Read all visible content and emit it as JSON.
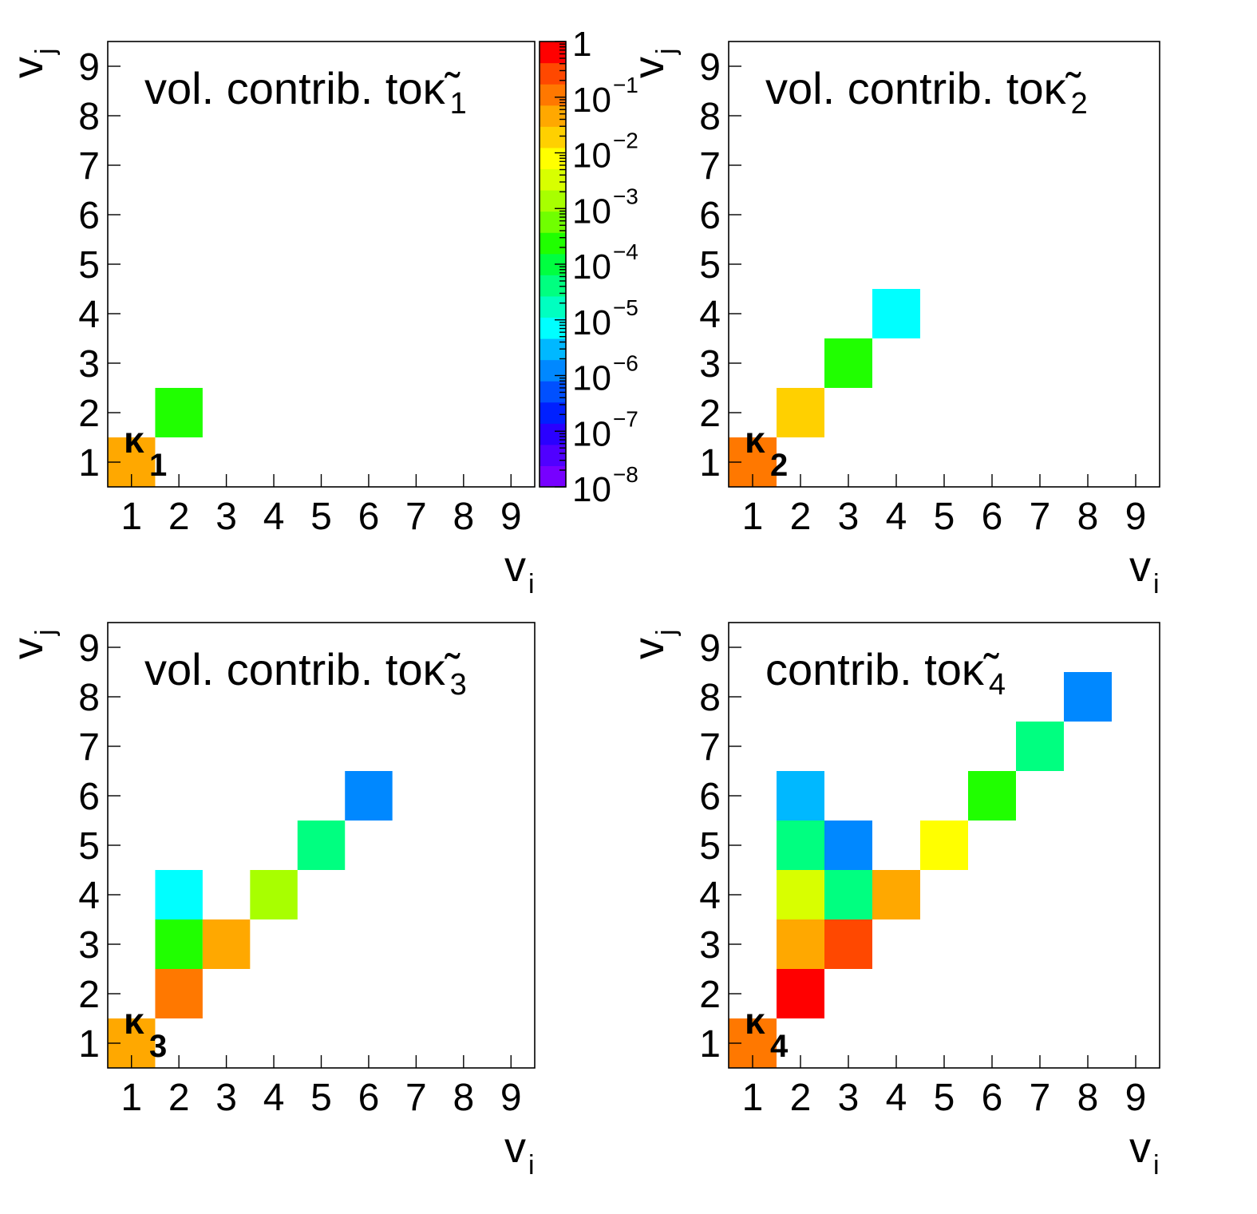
{
  "chart_data": [
    {
      "type": "heatmap",
      "title_main": "vol. contrib. to ",
      "title_symbol": "κ̃",
      "title_sub": "1",
      "label_symbol": "κ",
      "label_sub": "1",
      "xlabel": "v",
      "xlabel_sub": "i",
      "ylabel": "v",
      "ylabel_sub": "j",
      "x_ticks": [
        "1",
        "2",
        "3",
        "4",
        "5",
        "6",
        "7",
        "8",
        "9"
      ],
      "y_ticks": [
        "1",
        "2",
        "3",
        "4",
        "5",
        "6",
        "7",
        "8",
        "9"
      ],
      "xlim": [
        0.5,
        9.5
      ],
      "ylim": [
        0.5,
        9.5
      ],
      "scale": "log",
      "cells": [
        {
          "x": 1,
          "y": 1,
          "value": 0.05
        },
        {
          "x": 2,
          "y": 2,
          "value": 0.0003
        }
      ]
    },
    {
      "type": "heatmap",
      "title_main": "vol. contrib. to ",
      "title_symbol": "κ̃",
      "title_sub": "2",
      "label_symbol": "κ",
      "label_sub": "2",
      "xlabel": "v",
      "xlabel_sub": "i",
      "ylabel": "v",
      "ylabel_sub": "j",
      "x_ticks": [
        "1",
        "2",
        "3",
        "4",
        "5",
        "6",
        "7",
        "8",
        "9"
      ],
      "y_ticks": [
        "1",
        "2",
        "3",
        "4",
        "5",
        "6",
        "7",
        "8",
        "9"
      ],
      "xlim": [
        0.5,
        9.5
      ],
      "ylim": [
        0.5,
        9.5
      ],
      "scale": "log",
      "cells": [
        {
          "x": 1,
          "y": 1,
          "value": 0.15
        },
        {
          "x": 2,
          "y": 2,
          "value": 0.015
        },
        {
          "x": 3,
          "y": 3,
          "value": 0.0003
        },
        {
          "x": 4,
          "y": 4,
          "value": 6e-06
        }
      ]
    },
    {
      "type": "heatmap",
      "title_main": "vol. contrib. to ",
      "title_symbol": "κ̃",
      "title_sub": "3",
      "label_symbol": "κ",
      "label_sub": "3",
      "xlabel": "v",
      "xlabel_sub": "i",
      "ylabel": "v",
      "ylabel_sub": "j",
      "x_ticks": [
        "1",
        "2",
        "3",
        "4",
        "5",
        "6",
        "7",
        "8",
        "9"
      ],
      "y_ticks": [
        "1",
        "2",
        "3",
        "4",
        "5",
        "6",
        "7",
        "8",
        "9"
      ],
      "xlim": [
        0.5,
        9.5
      ],
      "ylim": [
        0.5,
        9.5
      ],
      "scale": "log",
      "cells": [
        {
          "x": 1,
          "y": 1,
          "value": 0.05
        },
        {
          "x": 2,
          "y": 2,
          "value": 0.15
        },
        {
          "x": 2,
          "y": 3,
          "value": 0.0003
        },
        {
          "x": 2,
          "y": 4,
          "value": 6e-06
        },
        {
          "x": 3,
          "y": 3,
          "value": 0.05
        },
        {
          "x": 4,
          "y": 4,
          "value": 0.002
        },
        {
          "x": 5,
          "y": 5,
          "value": 3e-05
        },
        {
          "x": 6,
          "y": 6,
          "value": 1e-06
        }
      ]
    },
    {
      "type": "heatmap",
      "title_main": "contrib. to ",
      "title_symbol": "κ̃",
      "title_sub": "4",
      "label_symbol": "κ",
      "label_sub": "4",
      "xlabel": "v",
      "xlabel_sub": "i",
      "ylabel": "v",
      "ylabel_sub": "j",
      "x_ticks": [
        "1",
        "2",
        "3",
        "4",
        "5",
        "6",
        "7",
        "8",
        "9"
      ],
      "y_ticks": [
        "1",
        "2",
        "3",
        "4",
        "5",
        "6",
        "7",
        "8",
        "9"
      ],
      "xlim": [
        0.5,
        9.5
      ],
      "ylim": [
        0.5,
        9.5
      ],
      "scale": "log",
      "cells": [
        {
          "x": 1,
          "y": 1,
          "value": 0.15
        },
        {
          "x": 2,
          "y": 2,
          "value": 0.7
        },
        {
          "x": 2,
          "y": 3,
          "value": 0.05
        },
        {
          "x": 2,
          "y": 4,
          "value": 0.004
        },
        {
          "x": 2,
          "y": 5,
          "value": 5e-05
        },
        {
          "x": 2,
          "y": 6,
          "value": 2e-06
        },
        {
          "x": 3,
          "y": 3,
          "value": 0.35
        },
        {
          "x": 3,
          "y": 4,
          "value": 5e-05
        },
        {
          "x": 3,
          "y": 5,
          "value": 1e-06
        },
        {
          "x": 4,
          "y": 4,
          "value": 0.05
        },
        {
          "x": 5,
          "y": 5,
          "value": 0.008
        },
        {
          "x": 6,
          "y": 6,
          "value": 0.0003
        },
        {
          "x": 7,
          "y": 7,
          "value": 5e-05
        },
        {
          "x": 8,
          "y": 8,
          "value": 1e-06
        }
      ]
    }
  ],
  "colorbar": {
    "scale": "log",
    "range": [
      1e-08,
      1
    ],
    "tick_labels": [
      {
        "base": "10",
        "exp": "−8"
      },
      {
        "base": "10",
        "exp": "−7"
      },
      {
        "base": "10",
        "exp": "−6"
      },
      {
        "base": "10",
        "exp": "−5"
      },
      {
        "base": "10",
        "exp": "−4"
      },
      {
        "base": "10",
        "exp": "−3"
      },
      {
        "base": "10",
        "exp": "−2"
      },
      {
        "base": "10",
        "exp": "−1"
      },
      {
        "base": "1",
        "exp": ""
      }
    ],
    "colors": [
      "#7700ff",
      "#5000ff",
      "#2a00ff",
      "#0020ff",
      "#0050ff",
      "#0088ff",
      "#00b8ff",
      "#00ffff",
      "#00ffc0",
      "#00ff80",
      "#00ff40",
      "#20ff00",
      "#70ff00",
      "#a8ff00",
      "#d8ff00",
      "#ffff00",
      "#ffd000",
      "#ffa800",
      "#ff7800",
      "#ff4800",
      "#ff0000"
    ]
  }
}
